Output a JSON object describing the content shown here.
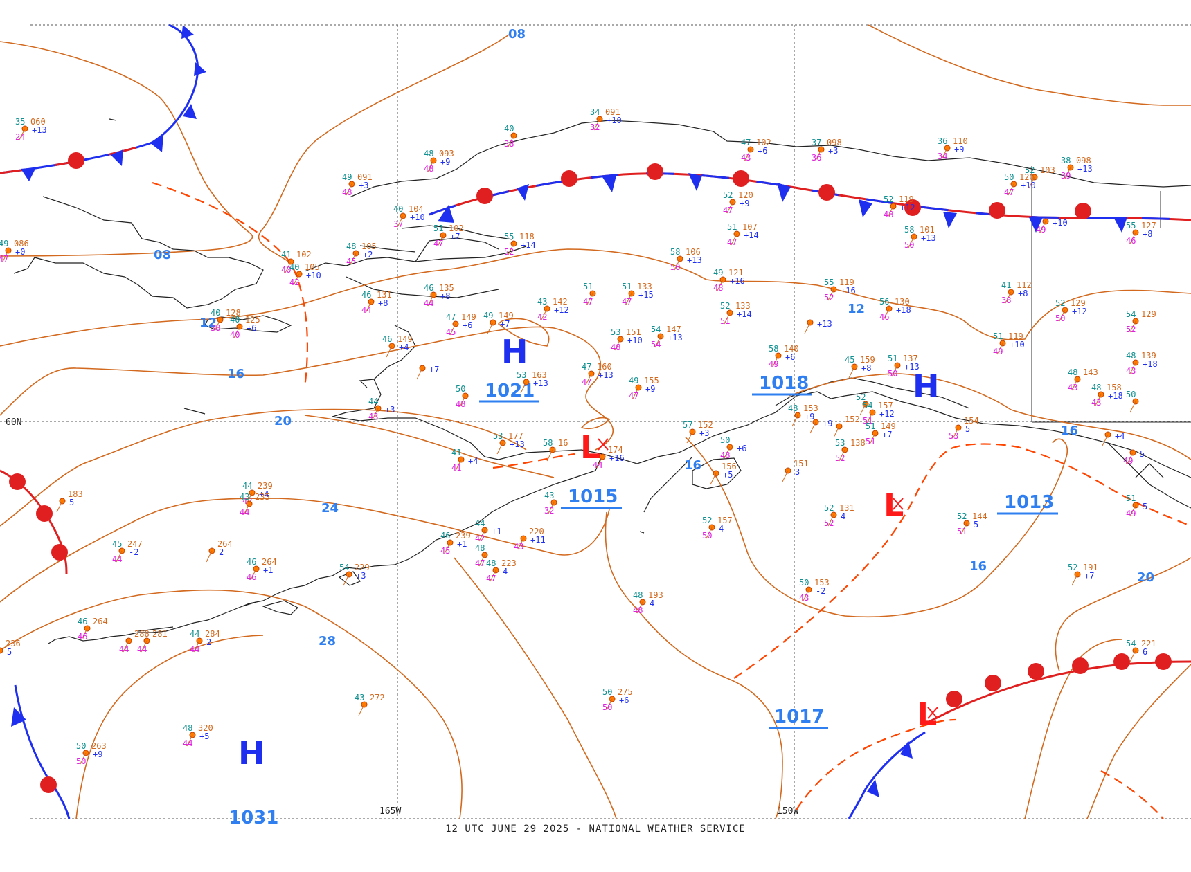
{
  "footer": "12 UTC JUNE 29 2025 - NATIONAL WEATHER SERVICE",
  "grid_labels": {
    "lat60": "60N",
    "lon165": "165W",
    "lon150": "150W"
  },
  "isobar_labels": [
    "08",
    "08",
    "12",
    "16",
    "20",
    "24",
    "28",
    "16",
    "12",
    "16",
    "20",
    "16"
  ],
  "pressure_centers": [
    {
      "type": "H",
      "value": "1021"
    },
    {
      "type": "H",
      "value": "1018"
    },
    {
      "type": "L",
      "value": "1015"
    },
    {
      "type": "L",
      "value": "1013"
    },
    {
      "type": "L",
      "value": "1017"
    },
    {
      "type": "H",
      "value": "1031"
    }
  ],
  "stations": [
    {
      "t": "35",
      "p": "060",
      "d": "24",
      "tend": "+13"
    },
    {
      "t": "34",
      "p": "091",
      "d": "32",
      "tend": "+10"
    },
    {
      "t": "49",
      "p": "086",
      "d": "47",
      "tend": "+0"
    },
    {
      "t": "49",
      "p": "091",
      "d": "48",
      "tend": "+3"
    },
    {
      "t": "48",
      "p": "093",
      "d": "48",
      "tend": "+9"
    },
    {
      "t": "40",
      "p": "",
      "d": "38",
      "tend": ""
    },
    {
      "t": "40",
      "p": "104",
      "d": "37",
      "tend": "+10"
    },
    {
      "t": "51",
      "p": "102",
      "d": "47",
      "tend": "+7"
    },
    {
      "t": "55",
      "p": "118",
      "d": "52",
      "tend": "+14"
    },
    {
      "t": "41",
      "p": "102",
      "d": "40",
      "tend": ""
    },
    {
      "t": "40",
      "p": "105",
      "d": "42",
      "tend": "+10"
    },
    {
      "t": "48",
      "p": "105",
      "d": "45",
      "tend": "+2"
    },
    {
      "t": "40",
      "p": "128",
      "d": "38",
      "tend": ""
    },
    {
      "t": "40",
      "p": "125",
      "d": "40",
      "tend": "+6"
    },
    {
      "t": "46",
      "p": "131",
      "d": "44",
      "tend": "+8"
    },
    {
      "t": "46",
      "p": "135",
      "d": "44",
      "tend": "+8"
    },
    {
      "t": "43",
      "p": "142",
      "d": "42",
      "tend": "+12"
    },
    {
      "t": "51",
      "p": "",
      "d": "47",
      "tend": ""
    },
    {
      "t": "51",
      "p": "133",
      "d": "47",
      "tend": "+15"
    },
    {
      "t": "47",
      "p": "149",
      "d": "45",
      "tend": "+6"
    },
    {
      "t": "49",
      "p": "149",
      "d": "",
      "tend": "+7"
    },
    {
      "t": "46",
      "p": "149",
      "d": "",
      "tend": "+4"
    },
    {
      "t": "",
      "p": "",
      "d": "",
      "tend": "+7"
    },
    {
      "t": "53",
      "p": "151",
      "d": "48",
      "tend": "+10"
    },
    {
      "t": "54",
      "p": "147",
      "d": "54",
      "tend": "+13"
    },
    {
      "t": "53",
      "p": "163",
      "d": "",
      "tend": "+13"
    },
    {
      "t": "47",
      "p": "160",
      "d": "47",
      "tend": "+13"
    },
    {
      "t": "49",
      "p": "155",
      "d": "47",
      "tend": "+9"
    },
    {
      "t": "44",
      "p": "",
      "d": "43",
      "tend": "+3"
    },
    {
      "t": "50",
      "p": "",
      "d": "48",
      "tend": ""
    },
    {
      "t": "53",
      "p": "177",
      "d": "",
      "tend": "+13"
    },
    {
      "t": "58",
      "p": "16",
      "d": "",
      "tend": ""
    },
    {
      "t": "",
      "p": "174",
      "d": "44",
      "tend": "+16"
    },
    {
      "t": "41",
      "p": "",
      "d": "41",
      "tend": "+4"
    },
    {
      "t": "47",
      "p": "102",
      "d": "43",
      "tend": "+6"
    },
    {
      "t": "37",
      "p": "098",
      "d": "36",
      "tend": "+3"
    },
    {
      "t": "36",
      "p": "110",
      "d": "34",
      "tend": "+9"
    },
    {
      "t": "52",
      "p": "120",
      "d": "47",
      "tend": "+9"
    },
    {
      "t": "51",
      "p": "107",
      "d": "47",
      "tend": "+14"
    },
    {
      "t": "58",
      "p": "106",
      "d": "50",
      "tend": "+13"
    },
    {
      "t": "49",
      "p": "121",
      "d": "48",
      "tend": "+16"
    },
    {
      "t": "52",
      "p": "133",
      "d": "51",
      "tend": "+14"
    },
    {
      "t": "52",
      "p": "119",
      "d": "48",
      "tend": "+12"
    },
    {
      "t": "58",
      "p": "101",
      "d": "50",
      "tend": "+13"
    },
    {
      "t": "52",
      "p": "103",
      "d": "",
      "tend": ""
    },
    {
      "t": "50",
      "p": "120",
      "d": "47",
      "tend": "+10"
    },
    {
      "t": "38",
      "p": "098",
      "d": "39",
      "tend": "+13"
    },
    {
      "t": "55",
      "p": "119",
      "d": "52",
      "tend": "+16"
    },
    {
      "t": "56",
      "p": "130",
      "d": "46",
      "tend": "+18"
    },
    {
      "t": "",
      "p": "",
      "d": "",
      "tend": "+13"
    },
    {
      "t": "41",
      "p": "112",
      "d": "38",
      "tend": "+8"
    },
    {
      "t": "",
      "p": "",
      "d": "49",
      "tend": "+10"
    },
    {
      "t": "55",
      "p": "127",
      "d": "46",
      "tend": "+8"
    },
    {
      "t": "52",
      "p": "129",
      "d": "50",
      "tend": "+12"
    },
    {
      "t": "54",
      "p": "129",
      "d": "52",
      "tend": ""
    },
    {
      "t": "51",
      "p": "119",
      "d": "49",
      "tend": "+10"
    },
    {
      "t": "58",
      "p": "140",
      "d": "49",
      "tend": "+6"
    },
    {
      "t": "45",
      "p": "159",
      "d": "",
      "tend": "+8"
    },
    {
      "t": "51",
      "p": "137",
      "d": "50",
      "tend": "+13"
    },
    {
      "t": "48",
      "p": "139",
      "d": "43",
      "tend": "+18"
    },
    {
      "t": "48",
      "p": "143",
      "d": "43",
      "tend": ""
    },
    {
      "t": "48",
      "p": "158",
      "d": "43",
      "tend": "+18"
    },
    {
      "t": "52",
      "p": "",
      "d": "",
      "tend": ""
    },
    {
      "t": "54",
      "p": "157",
      "d": "51",
      "tend": "+12"
    },
    {
      "t": "51",
      "p": "149",
      "d": "51",
      "tend": "+7"
    },
    {
      "t": "",
      "p": "152",
      "d": "",
      "tend": ""
    },
    {
      "t": "53",
      "p": "138",
      "d": "52",
      "tend": ""
    },
    {
      "t": "",
      "p": "154",
      "d": "53",
      "tend": "5"
    },
    {
      "t": "57",
      "p": "152",
      "d": "",
      "tend": "+3"
    },
    {
      "t": "50",
      "p": "",
      "d": "48",
      "tend": "+6"
    },
    {
      "t": "",
      "p": "156",
      "d": "",
      "tend": "+5"
    },
    {
      "t": "",
      "p": "151",
      "d": "",
      "tend": "3"
    },
    {
      "t": "48",
      "p": "153",
      "d": "",
      "tend": "+9"
    },
    {
      "t": "",
      "p": "",
      "d": "",
      "tend": "+9"
    },
    {
      "t": "43",
      "p": "",
      "d": "32",
      "tend": ""
    },
    {
      "t": "",
      "p": "183",
      "d": "",
      "tend": "5"
    },
    {
      "t": "44",
      "p": "239",
      "d": "42",
      "tend": "+4"
    },
    {
      "t": "43",
      "p": "235",
      "d": "44",
      "tend": ""
    },
    {
      "t": "45",
      "p": "247",
      "d": "44",
      "tend": "-2"
    },
    {
      "t": "",
      "p": "264",
      "d": "",
      "tend": "2"
    },
    {
      "t": "46",
      "p": "264",
      "d": "46",
      "tend": "+1"
    },
    {
      "t": "46",
      "p": "239",
      "d": "45",
      "tend": "+1"
    },
    {
      "t": "44",
      "p": "",
      "d": "42",
      "tend": "+1"
    },
    {
      "t": "",
      "p": "220",
      "d": "43",
      "tend": "+11"
    },
    {
      "t": "48",
      "p": "223",
      "d": "47",
      "tend": "4"
    },
    {
      "t": "54",
      "p": "229",
      "d": "",
      "tend": "+3"
    },
    {
      "t": "48",
      "p": "",
      "d": "47",
      "tend": ""
    },
    {
      "t": "46",
      "p": "264",
      "d": "46",
      "tend": ""
    },
    {
      "t": "",
      "p": "236",
      "d": "",
      "tend": "5"
    },
    {
      "t": "",
      "p": "288",
      "d": "44",
      "tend": ""
    },
    {
      "t": "",
      "p": "281",
      "d": "44",
      "tend": ""
    },
    {
      "t": "44",
      "p": "284",
      "d": "44",
      "tend": "2"
    },
    {
      "t": "43",
      "p": "272",
      "d": "",
      "tend": ""
    },
    {
      "t": "48",
      "p": "320",
      "d": "44",
      "tend": "+5"
    },
    {
      "t": "50",
      "p": "263",
      "d": "50",
      "tend": "+9"
    },
    {
      "t": "50",
      "p": "275",
      "d": "50",
      "tend": "+6"
    },
    {
      "t": "48",
      "p": "193",
      "d": "48",
      "tend": "4"
    },
    {
      "t": "52",
      "p": "157",
      "d": "50",
      "tend": "4"
    },
    {
      "t": "52",
      "p": "131",
      "d": "52",
      "tend": "4"
    },
    {
      "t": "50",
      "p": "153",
      "d": "43",
      "tend": "-2"
    },
    {
      "t": "52",
      "p": "144",
      "d": "51",
      "tend": "5"
    },
    {
      "t": "52",
      "p": "191",
      "d": "",
      "tend": "+7"
    },
    {
      "t": "54",
      "p": "221",
      "d": "",
      "tend": "6"
    },
    {
      "t": "51",
      "p": "",
      "d": "49",
      "tend": "5"
    },
    {
      "t": "",
      "p": "",
      "d": "49",
      "tend": "5"
    },
    {
      "t": "",
      "p": "",
      "d": "",
      "tend": "+4"
    },
    {
      "t": "50",
      "p": "",
      "d": "",
      "tend": ""
    }
  ]
}
